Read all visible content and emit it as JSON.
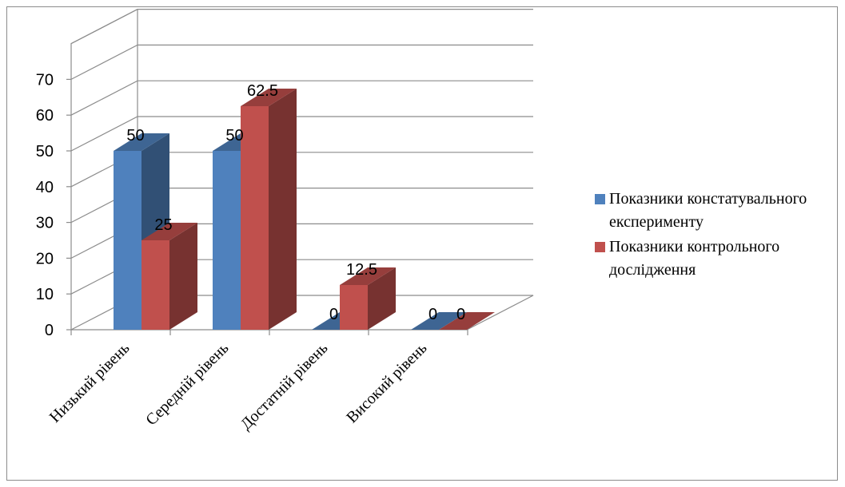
{
  "chart_data": {
    "type": "bar",
    "categories": [
      "Низький рівень",
      "Середній рівень",
      "Достатній рівень",
      "Високий рівень"
    ],
    "series": [
      {
        "name": "Показники констатувального експерименту",
        "values": [
          50,
          50,
          0,
          0
        ],
        "color": "#4f81bd"
      },
      {
        "name": "Показники контрольного дослідження",
        "values": [
          25,
          62.5,
          12.5,
          0
        ],
        "color": "#c0504d"
      }
    ],
    "data_labels": [
      [
        "50",
        "50",
        "0",
        "0"
      ],
      [
        "25",
        "62.5",
        "12.5",
        "0"
      ]
    ],
    "yticks": [
      "0",
      "10",
      "20",
      "30",
      "40",
      "50",
      "60",
      "70"
    ],
    "ylim": [
      0,
      80
    ],
    "grid": true,
    "legend_position": "right",
    "style": "3d-clustered-column"
  }
}
